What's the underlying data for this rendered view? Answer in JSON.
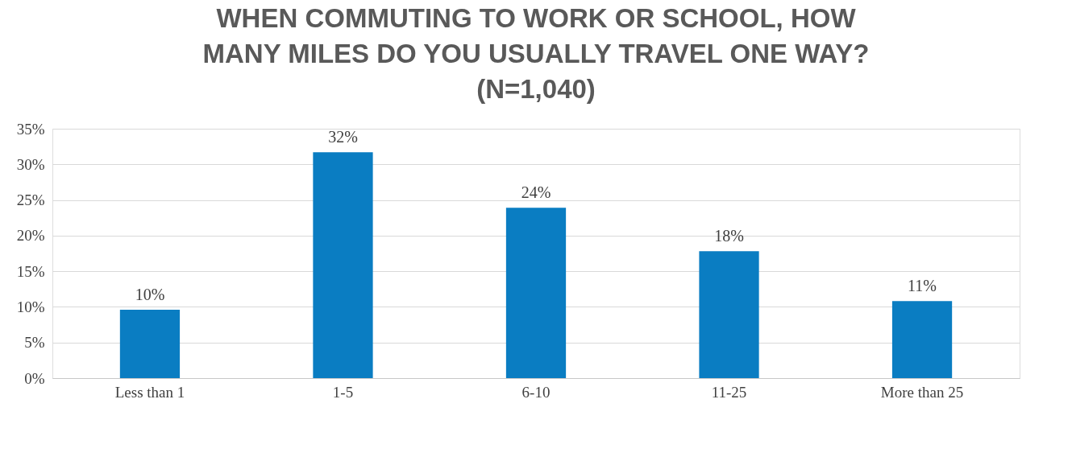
{
  "chart_data": {
    "type": "bar",
    "title": "WHEN COMMUTING TO WORK OR SCHOOL, HOW MANY MILES DO YOU USUALLY TRAVEL ONE WAY? (N=1,040)",
    "categories": [
      "Less than 1",
      "1-5",
      "6-10",
      "11-25",
      "More than 25"
    ],
    "values": [
      9.6,
      31.7,
      23.9,
      17.8,
      10.8
    ],
    "value_labels": [
      "10%",
      "32%",
      "24%",
      "18%",
      "11%"
    ],
    "color": "#0a7dc2",
    "ylim": [
      0,
      35
    ],
    "yticks": [
      {
        "value": 0,
        "label": "0%"
      },
      {
        "value": 5,
        "label": "5%"
      },
      {
        "value": 10,
        "label": "10%"
      },
      {
        "value": 15,
        "label": "15%"
      },
      {
        "value": 20,
        "label": "20%"
      },
      {
        "value": 25,
        "label": "25%"
      },
      {
        "value": 30,
        "label": "30%"
      },
      {
        "value": 35,
        "label": "35%"
      }
    ],
    "grid": "y"
  }
}
